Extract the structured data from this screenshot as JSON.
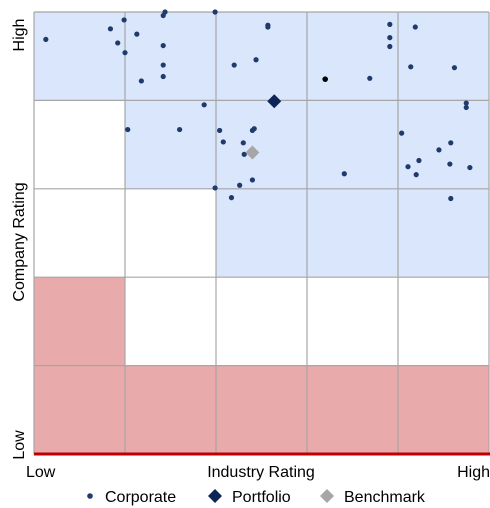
{
  "chart_data": {
    "type": "scatter",
    "xlabel": "Industry Rating",
    "ylabel": "Company Rating",
    "x_tick_labels": {
      "low": "Low",
      "high": "High"
    },
    "y_tick_labels": {
      "low": "Low",
      "high": "High"
    },
    "xlim": [
      0,
      5
    ],
    "ylim": [
      0,
      5
    ],
    "grid": true,
    "legend_position": "bottom",
    "zones": [
      {
        "level": "favorable",
        "color": "#d9e6fc",
        "cells": [
          [
            0,
            4
          ],
          [
            1,
            4
          ],
          [
            2,
            4
          ],
          [
            3,
            4
          ],
          [
            4,
            4
          ],
          [
            1,
            3
          ],
          [
            2,
            3
          ],
          [
            3,
            3
          ],
          [
            4,
            3
          ],
          [
            2,
            2
          ],
          [
            3,
            2
          ],
          [
            4,
            2
          ]
        ]
      },
      {
        "level": "unfavorable",
        "color": "#e8aaaa",
        "cells": [
          [
            0,
            1
          ],
          [
            0,
            0
          ],
          [
            1,
            0
          ],
          [
            2,
            0
          ],
          [
            3,
            0
          ],
          [
            4,
            0
          ]
        ]
      }
    ],
    "series": [
      {
        "name": "Corporate",
        "marker": "circle",
        "color": "#1f3a6b",
        "points": [
          [
            0.13,
            4.69
          ],
          [
            0.84,
            4.81
          ],
          [
            0.99,
            4.91
          ],
          [
            0.92,
            4.65
          ],
          [
            1.13,
            4.75
          ],
          [
            1.42,
            4.96
          ],
          [
            1.44,
            5.0
          ],
          [
            1.99,
            5.0
          ],
          [
            2.57,
            4.85
          ],
          [
            2.57,
            4.83
          ],
          [
            1.0,
            4.54
          ],
          [
            1.42,
            4.62
          ],
          [
            2.2,
            4.4
          ],
          [
            2.44,
            4.46
          ],
          [
            1.42,
            4.4
          ],
          [
            1.42,
            4.27
          ],
          [
            1.18,
            4.22
          ],
          [
            1.87,
            3.95
          ],
          [
            3.91,
            4.86
          ],
          [
            3.91,
            4.71
          ],
          [
            3.91,
            4.61
          ],
          [
            4.19,
            4.83
          ],
          [
            4.14,
            4.38
          ],
          [
            3.69,
            4.25
          ],
          [
            4.62,
            4.37
          ],
          [
            4.75,
            3.97
          ],
          [
            4.75,
            3.92
          ],
          [
            1.03,
            3.67
          ],
          [
            1.6,
            3.67
          ],
          [
            2.04,
            3.66
          ],
          [
            2.4,
            3.66
          ],
          [
            2.42,
            3.68
          ],
          [
            2.08,
            3.53
          ],
          [
            2.3,
            3.52
          ],
          [
            2.31,
            3.39
          ],
          [
            4.04,
            3.63
          ],
          [
            4.58,
            3.52
          ],
          [
            4.45,
            3.44
          ],
          [
            4.23,
            3.32
          ],
          [
            4.79,
            3.24
          ],
          [
            4.57,
            3.28
          ],
          [
            4.11,
            3.25
          ],
          [
            4.2,
            3.16
          ],
          [
            3.41,
            3.17
          ],
          [
            2.4,
            3.1
          ],
          [
            2.26,
            3.04
          ],
          [
            1.99,
            3.01
          ],
          [
            2.17,
            2.9
          ],
          [
            4.58,
            2.89
          ]
        ]
      },
      {
        "name": "Portfolio",
        "marker": "diamond",
        "color": "#0d2457",
        "points": [
          [
            2.64,
            3.99
          ]
        ]
      },
      {
        "name": "Benchmark",
        "marker": "diamond",
        "color": "#a6a6a6",
        "points": [
          [
            2.4,
            3.41
          ]
        ]
      }
    ],
    "highlight_point": {
      "series": "Corporate",
      "point": [
        3.2,
        4.24
      ],
      "color": "#000000"
    }
  }
}
